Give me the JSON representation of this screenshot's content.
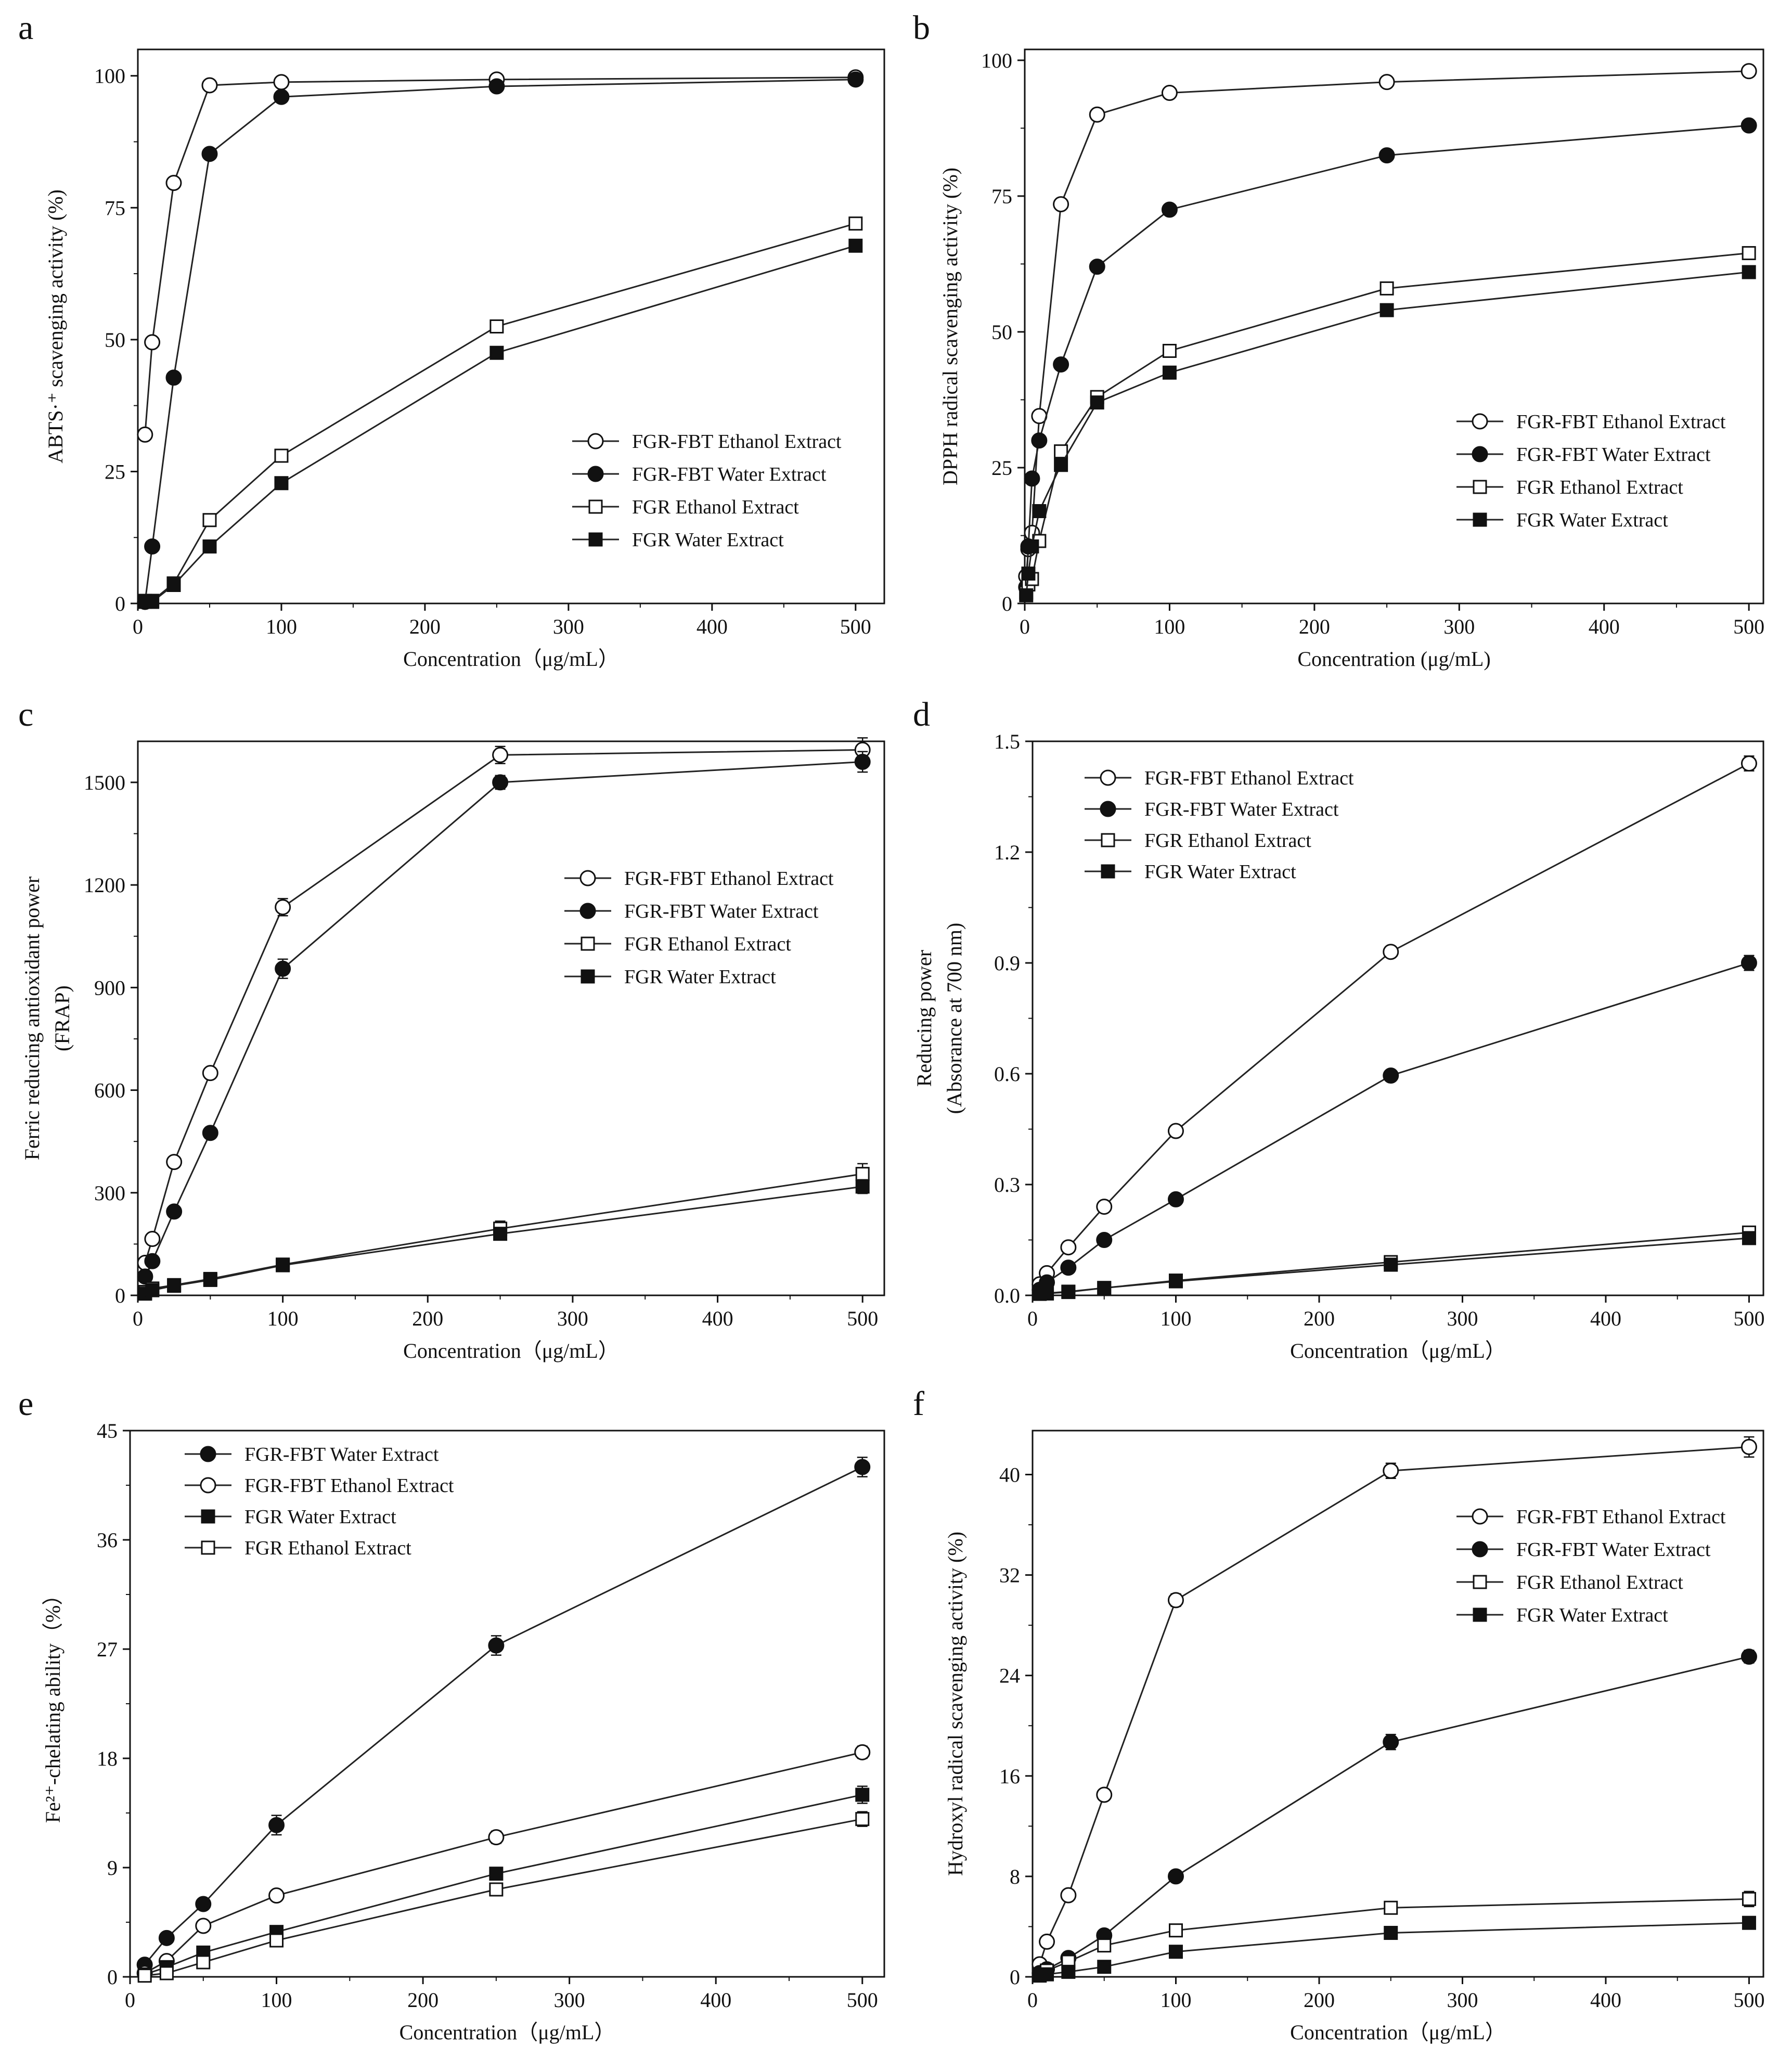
{
  "chart_data": [
    {
      "panel": "a",
      "type": "line",
      "xlabel": "Concentration（μg/mL）",
      "ylabel": [
        "ABTS·⁺ scavenging activity (%)"
      ],
      "xlim": [
        0,
        520
      ],
      "ylim": [
        0,
        105
      ],
      "xticks": [
        0,
        100,
        200,
        300,
        400,
        500
      ],
      "yticks": [
        0,
        25,
        50,
        75,
        100
      ],
      "legend_position": "bottom-right",
      "series": [
        {
          "name": "FGR-FBT Ethanol Extract",
          "marker": "circle-open",
          "x": [
            5,
            10,
            25,
            50,
            100,
            250,
            500
          ],
          "y": [
            32,
            49.5,
            79.7,
            98.2,
            98.8,
            99.3,
            99.7
          ]
        },
        {
          "name": "FGR-FBT Water Extract",
          "marker": "circle-filled",
          "x": [
            5,
            10,
            25,
            50,
            100,
            250,
            500
          ],
          "y": [
            0.3,
            10.8,
            42.8,
            85.2,
            96.0,
            98.0,
            99.3
          ]
        },
        {
          "name": "FGR Ethanol Extract",
          "marker": "square-open",
          "x": [
            5,
            10,
            25,
            50,
            100,
            250,
            500
          ],
          "y": [
            0.3,
            0.5,
            3.8,
            15.8,
            28.0,
            52.5,
            72.0
          ]
        },
        {
          "name": "FGR Water Extract",
          "marker": "square-filled",
          "x": [
            5,
            10,
            25,
            50,
            100,
            250,
            500
          ],
          "y": [
            0.5,
            0.3,
            3.5,
            10.8,
            22.8,
            47.5,
            67.8
          ]
        }
      ]
    },
    {
      "panel": "b",
      "type": "line",
      "xlabel": "Concentration (μg/mL)",
      "ylabel": [
        "DPPH radical scavenging activity (%)"
      ],
      "xlim": [
        0,
        510
      ],
      "ylim": [
        0,
        102
      ],
      "xticks": [
        0,
        100,
        200,
        300,
        400,
        500
      ],
      "yticks": [
        0,
        25,
        50,
        75,
        100
      ],
      "legend_position": "bottom-right",
      "series": [
        {
          "name": "FGR-FBT Ethanol Extract",
          "marker": "circle-open",
          "x": [
            1,
            2.5,
            5,
            10,
            25,
            50,
            100,
            250,
            500
          ],
          "y": [
            5,
            10,
            13,
            34.5,
            73.5,
            90,
            94,
            96,
            98
          ]
        },
        {
          "name": "FGR-FBT Water Extract",
          "marker": "circle-filled",
          "x": [
            1,
            2.5,
            5,
            10,
            25,
            50,
            100,
            250,
            500
          ],
          "y": [
            3,
            10.5,
            23,
            30,
            44,
            62,
            72.5,
            82.5,
            88
          ]
        },
        {
          "name": "FGR Ethanol Extract",
          "marker": "square-open",
          "x": [
            1,
            2.5,
            5,
            10,
            25,
            50,
            100,
            250,
            500
          ],
          "y": [
            2,
            3.5,
            4.5,
            11.5,
            28,
            38,
            46.5,
            58,
            64.5
          ]
        },
        {
          "name": "FGR Water Extract",
          "marker": "square-filled",
          "x": [
            1,
            2.5,
            5,
            10,
            25,
            50,
            100,
            250,
            500
          ],
          "y": [
            1.5,
            5.5,
            10.5,
            17,
            25.5,
            37,
            42.5,
            54,
            61
          ]
        }
      ]
    },
    {
      "panel": "c",
      "type": "line",
      "xlabel": "Concentration（μg/mL）",
      "ylabel": [
        "Ferric reducing antioxidant power",
        "(FRAP)"
      ],
      "xlim": [
        0,
        515
      ],
      "ylim": [
        0,
        1620
      ],
      "xticks": [
        0,
        100,
        200,
        300,
        400,
        500
      ],
      "yticks": [
        0,
        300,
        600,
        900,
        1200,
        1500
      ],
      "legend_position": "center-right",
      "series": [
        {
          "name": "FGR-FBT Ethanol Extract",
          "marker": "circle-open",
          "x": [
            5,
            10,
            25,
            50,
            100,
            250,
            500
          ],
          "y": [
            95,
            165,
            390,
            650,
            1135,
            1580,
            1595
          ],
          "err": [
            10,
            12,
            15,
            15,
            25,
            25,
            35
          ]
        },
        {
          "name": "FGR-FBT Water Extract",
          "marker": "circle-filled",
          "x": [
            5,
            10,
            25,
            50,
            100,
            250,
            500
          ],
          "y": [
            55,
            100,
            245,
            475,
            955,
            1500,
            1560
          ],
          "err": [
            8,
            10,
            12,
            15,
            28,
            20,
            30
          ]
        },
        {
          "name": "FGR Ethanol Extract",
          "marker": "square-open",
          "x": [
            5,
            10,
            25,
            50,
            100,
            250,
            500
          ],
          "y": [
            10,
            20,
            30,
            48,
            90,
            195,
            355
          ],
          "err": [
            3,
            4,
            5,
            5,
            8,
            22,
            30
          ]
        },
        {
          "name": "FGR Water Extract",
          "marker": "square-filled",
          "x": [
            5,
            10,
            25,
            50,
            100,
            250,
            500
          ],
          "y": [
            5,
            15,
            28,
            45,
            88,
            180,
            318
          ],
          "err": [
            3,
            3,
            4,
            5,
            7,
            18,
            20
          ]
        }
      ]
    },
    {
      "panel": "d",
      "type": "line",
      "xlabel": "Concentration（μg/mL）",
      "ylabel": [
        "Reducing power",
        "(Absorance at 700 nm)"
      ],
      "xlim": [
        0,
        510
      ],
      "ylim": [
        0,
        1.5
      ],
      "xticks": [
        0,
        100,
        200,
        300,
        400,
        500
      ],
      "yticks": [
        0.0,
        0.3,
        0.6,
        0.9,
        1.2,
        1.5
      ],
      "ytick_labels": [
        "0.0",
        "0.3",
        "0.6",
        "0.9",
        "1.2",
        "1.5"
      ],
      "legend_position": "top-left",
      "series": [
        {
          "name": "FGR-FBT Ethanol Extract",
          "marker": "circle-open",
          "x": [
            5,
            10,
            25,
            50,
            100,
            250,
            500
          ],
          "y": [
            0.03,
            0.06,
            0.13,
            0.24,
            0.445,
            0.93,
            1.44
          ],
          "err": [
            0.005,
            0.005,
            0.008,
            0.01,
            0.01,
            0.015,
            0.02
          ]
        },
        {
          "name": "FGR-FBT Water Extract",
          "marker": "circle-filled",
          "x": [
            5,
            10,
            25,
            50,
            100,
            250,
            500
          ],
          "y": [
            0.015,
            0.035,
            0.075,
            0.15,
            0.26,
            0.595,
            0.9
          ],
          "err": [
            0.004,
            0.005,
            0.006,
            0.008,
            0.01,
            0.012,
            0.02
          ]
        },
        {
          "name": "FGR Ethanol Extract",
          "marker": "square-open",
          "x": [
            5,
            10,
            25,
            50,
            100,
            250,
            500
          ],
          "y": [
            0.005,
            0.006,
            0.01,
            0.02,
            0.04,
            0.09,
            0.17
          ],
          "err": [
            0.002,
            0.002,
            0.003,
            0.004,
            0.005,
            0.008,
            0.01
          ]
        },
        {
          "name": "FGR Water Extract",
          "marker": "square-filled",
          "x": [
            5,
            10,
            25,
            50,
            100,
            250,
            500
          ],
          "y": [
            0.004,
            0.005,
            0.009,
            0.02,
            0.038,
            0.083,
            0.155
          ],
          "err": [
            0.002,
            0.002,
            0.003,
            0.004,
            0.005,
            0.006,
            0.008
          ]
        }
      ]
    },
    {
      "panel": "e",
      "type": "line",
      "xlabel": "Concentration（μg/mL）",
      "ylabel": [
        "Fe²⁺-chelating ability（%）"
      ],
      "xlim": [
        0,
        515
      ],
      "ylim": [
        0,
        45
      ],
      "xticks": [
        0,
        100,
        200,
        300,
        400,
        500
      ],
      "yticks": [
        0,
        9,
        18,
        27,
        36,
        45
      ],
      "legend_position": "top-left",
      "series": [
        {
          "name": "FGR-FBT Water Extract",
          "marker": "circle-filled",
          "x": [
            10,
            25,
            50,
            100,
            250,
            500
          ],
          "y": [
            1.0,
            3.2,
            6.0,
            12.5,
            27.3,
            42.0
          ],
          "err": [
            0.2,
            0.3,
            0.4,
            0.8,
            0.8,
            0.8
          ]
        },
        {
          "name": "FGR-FBT Ethanol Extract",
          "marker": "circle-open",
          "x": [
            10,
            25,
            50,
            100,
            250,
            500
          ],
          "y": [
            0.3,
            1.3,
            4.2,
            6.7,
            11.5,
            18.5
          ],
          "err": [
            0.2,
            0.2,
            0.3,
            0.3,
            0.5,
            0.5
          ]
        },
        {
          "name": "FGR Water Extract",
          "marker": "square-filled",
          "x": [
            10,
            25,
            50,
            100,
            250,
            500
          ],
          "y": [
            0.2,
            0.8,
            2.0,
            3.7,
            8.5,
            15.0
          ],
          "err": [
            0.1,
            0.2,
            0.2,
            0.3,
            0.5,
            0.7
          ]
        },
        {
          "name": "FGR Ethanol Extract",
          "marker": "square-open",
          "x": [
            10,
            25,
            50,
            100,
            250,
            500
          ],
          "y": [
            0.1,
            0.3,
            1.2,
            3.0,
            7.2,
            13.0
          ],
          "err": [
            0.1,
            0.1,
            0.2,
            0.3,
            0.4,
            0.6
          ]
        }
      ]
    },
    {
      "panel": "f",
      "type": "line",
      "xlabel": "Concentration（μg/mL）",
      "ylabel": [
        "Hydroxyl radical scavenging activity (%)"
      ],
      "xlim": [
        0,
        510
      ],
      "ylim": [
        0,
        43.5
      ],
      "xticks": [
        0,
        100,
        200,
        300,
        400,
        500
      ],
      "yticks": [
        0,
        8,
        16,
        24,
        32,
        40
      ],
      "legend_position": "center-right",
      "series": [
        {
          "name": "FGR-FBT Ethanol Extract",
          "marker": "circle-open",
          "x": [
            5,
            10,
            25,
            50,
            100,
            250,
            500
          ],
          "y": [
            1.0,
            2.8,
            6.5,
            14.5,
            30.0,
            40.3,
            42.2
          ],
          "err": [
            0.2,
            0.3,
            0.3,
            0.4,
            0.5,
            0.6,
            0.8
          ]
        },
        {
          "name": "FGR-FBT Water Extract",
          "marker": "circle-filled",
          "x": [
            5,
            10,
            25,
            50,
            100,
            250,
            500
          ],
          "y": [
            0.3,
            0.6,
            1.5,
            3.3,
            8.0,
            18.7,
            25.5
          ],
          "err": [
            0.1,
            0.1,
            0.2,
            0.3,
            0.4,
            0.6,
            0.5
          ]
        },
        {
          "name": "FGR Ethanol Extract",
          "marker": "square-open",
          "x": [
            5,
            10,
            25,
            50,
            100,
            250,
            500
          ],
          "y": [
            0.2,
            0.5,
            1.2,
            2.5,
            3.7,
            5.5,
            6.2
          ],
          "err": [
            0.1,
            0.1,
            0.2,
            0.2,
            0.3,
            0.3,
            0.6
          ]
        },
        {
          "name": "FGR Water Extract",
          "marker": "square-filled",
          "x": [
            5,
            10,
            25,
            50,
            100,
            250,
            500
          ],
          "y": [
            0.1,
            0.2,
            0.4,
            0.8,
            2.0,
            3.5,
            4.3
          ],
          "err": [
            0.05,
            0.05,
            0.1,
            0.1,
            0.2,
            0.2,
            0.3
          ]
        }
      ]
    }
  ]
}
